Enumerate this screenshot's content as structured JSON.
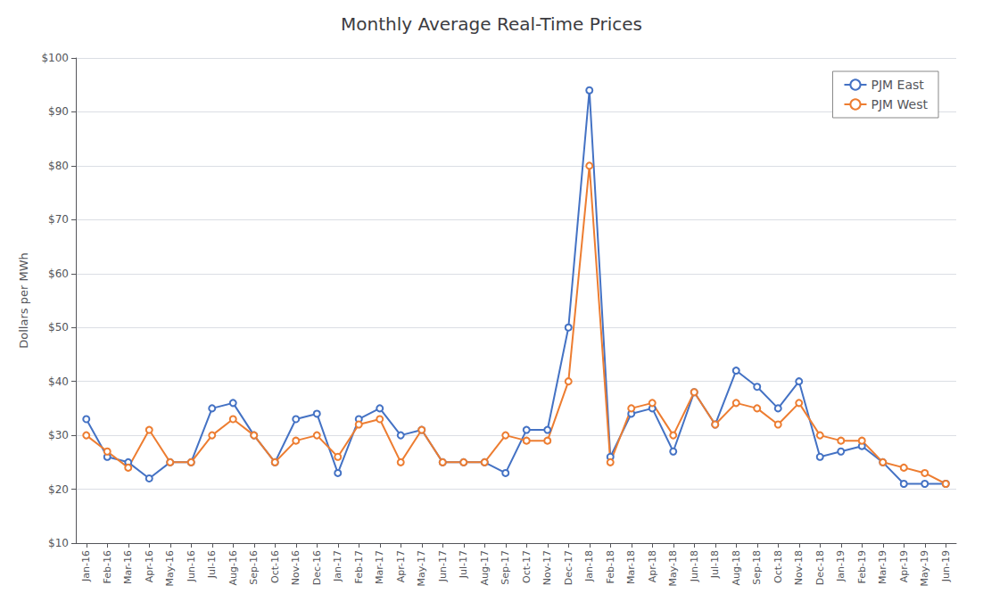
{
  "chart_data": {
    "type": "line",
    "title": "Monthly Average Real-Time Prices",
    "y_label": "Dollars per MWh",
    "categories": [
      "Jan-16",
      "Feb-16",
      "Mar-16",
      "Apr-16",
      "May-16",
      "Jun-16",
      "Jul-16",
      "Aug-16",
      "Sep-16",
      "Oct-16",
      "Nov-16",
      "Dec-16",
      "Jan-17",
      "Feb-17",
      "Mar-17",
      "Apr-17",
      "May-17",
      "Jun-17",
      "Jul-17",
      "Aug-17",
      "Sep-17",
      "Oct-17",
      "Nov-17",
      "Dec-17",
      "Jan-18",
      "Feb-18",
      "Mar-18",
      "Apr-18",
      "May-18",
      "Jun-18",
      "Jul-18",
      "Aug-18",
      "Sep-18",
      "Oct-18",
      "Nov-18",
      "Dec-18",
      "Jan-19",
      "Feb-19",
      "Mar-19",
      "Apr-19",
      "May-19",
      "Jun-19"
    ],
    "series": [
      {
        "name": "PJM East",
        "color": "#4472C4",
        "marker": "circle",
        "values": [
          33,
          26,
          25,
          22,
          25,
          25,
          35,
          36,
          30,
          25,
          33,
          34,
          23,
          33,
          35,
          30,
          31,
          25,
          25,
          25,
          23,
          31,
          31,
          50,
          94,
          26,
          34,
          35,
          27,
          38,
          32,
          42,
          39,
          35,
          40,
          26,
          27,
          28,
          25,
          21,
          21,
          21
        ]
      },
      {
        "name": "PJM West",
        "color": "#ED7D31",
        "marker": "circle",
        "values": [
          30,
          27,
          24,
          31,
          25,
          25,
          30,
          33,
          30,
          25,
          29,
          30,
          26,
          32,
          33,
          25,
          31,
          25,
          25,
          25,
          30,
          29,
          29,
          40,
          80,
          25,
          35,
          36,
          30,
          38,
          32,
          36,
          35,
          32,
          36,
          30,
          29,
          29,
          25,
          24,
          23,
          21
        ]
      }
    ],
    "ylim": [
      10,
      100
    ],
    "yticks": [
      {
        "value": 10,
        "label": "$10"
      },
      {
        "value": 20,
        "label": "$20"
      },
      {
        "value": 30,
        "label": "$30"
      },
      {
        "value": 40,
        "label": "$40"
      },
      {
        "value": 50,
        "label": "$50"
      },
      {
        "value": 60,
        "label": "$60"
      },
      {
        "value": 70,
        "label": "$70"
      },
      {
        "value": 80,
        "label": "$80"
      },
      {
        "value": 90,
        "label": "$90"
      },
      {
        "value": 100,
        "label": "$100"
      }
    ],
    "grid": true,
    "legend": "upper right"
  }
}
